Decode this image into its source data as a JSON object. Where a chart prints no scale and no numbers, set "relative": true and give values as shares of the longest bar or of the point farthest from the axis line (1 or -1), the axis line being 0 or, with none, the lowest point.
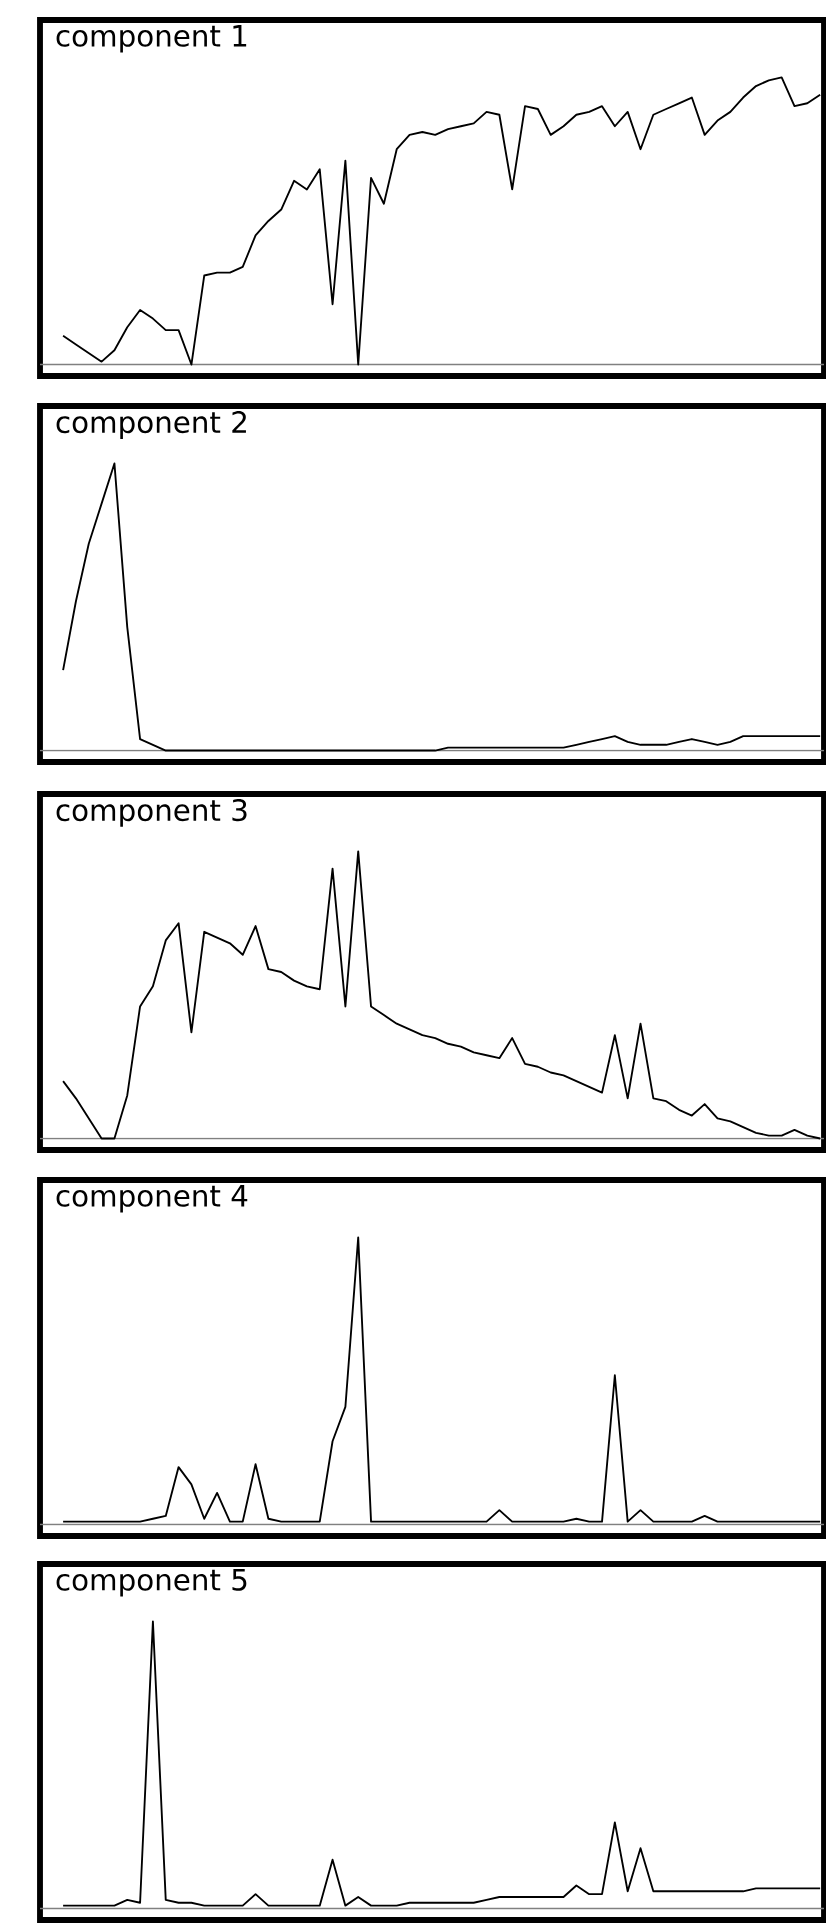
{
  "chart_data": [
    {
      "type": "line",
      "title": "component 1",
      "relative": true,
      "color": "#000000",
      "categories": [
        null,
        null,
        null,
        null,
        null,
        null,
        null,
        null,
        null,
        null,
        null,
        null,
        null,
        null,
        null,
        null,
        null,
        null,
        null,
        null,
        null,
        null,
        null,
        null,
        null,
        null,
        null,
        null,
        null,
        null,
        null,
        null,
        null,
        null,
        null,
        null,
        null,
        null,
        null,
        null,
        null,
        null,
        null,
        null,
        null,
        null,
        null,
        null,
        null,
        null,
        null,
        null,
        null,
        null,
        null,
        null,
        null,
        null,
        null,
        null
      ],
      "values": [
        0.1,
        0.07,
        0.04,
        0.01,
        0.05,
        0.13,
        0.19,
        0.16,
        0.12,
        0.12,
        0,
        0.31,
        0.32,
        0.32,
        0.34,
        0.45,
        0.5,
        0.54,
        0.64,
        0.61,
        0.68,
        0.21,
        0.71,
        0,
        0.65,
        0.56,
        0.75,
        0.8,
        0.81,
        0.8,
        0.82,
        0.83,
        0.84,
        0.88,
        0.87,
        0.61,
        0.9,
        0.89,
        0.8,
        0.83,
        0.87,
        0.88,
        0.9,
        0.83,
        0.88,
        0.75,
        0.87,
        0.89,
        0.91,
        0.93,
        0.8,
        0.85,
        0.88,
        0.93,
        0.97,
        0.99,
        1.0,
        0.9,
        0.91,
        0.94
      ]
    },
    {
      "type": "line",
      "title": "component 2",
      "relative": true,
      "color": "#000000",
      "categories": [
        null,
        null,
        null,
        null,
        null,
        null,
        null,
        null,
        null,
        null,
        null,
        null,
        null,
        null,
        null,
        null,
        null,
        null,
        null,
        null,
        null,
        null,
        null,
        null,
        null,
        null,
        null,
        null,
        null,
        null,
        null,
        null,
        null,
        null,
        null,
        null,
        null,
        null,
        null,
        null,
        null,
        null,
        null,
        null,
        null,
        null,
        null,
        null,
        null,
        null,
        null,
        null,
        null,
        null,
        null,
        null,
        null,
        null,
        null,
        null
      ],
      "values": [
        0.28,
        0.52,
        0.72,
        0.86,
        1.0,
        0.43,
        0.04,
        0.02,
        0,
        0,
        0,
        0,
        0,
        0,
        0,
        0,
        0,
        0,
        0,
        0,
        0,
        0,
        0,
        0,
        0,
        0,
        0,
        0,
        0,
        0,
        0.01,
        0.01,
        0.01,
        0.01,
        0.01,
        0.01,
        0.01,
        0.01,
        0.01,
        0.01,
        0.02,
        0.03,
        0.04,
        0.05,
        0.03,
        0.02,
        0.02,
        0.02,
        0.03,
        0.04,
        0.03,
        0.02,
        0.03,
        0.05,
        0.05,
        0.05,
        0.05,
        0.05,
        0.05,
        0.05
      ]
    },
    {
      "type": "line",
      "title": "component 3",
      "relative": true,
      "color": "#000000",
      "categories": [
        null,
        null,
        null,
        null,
        null,
        null,
        null,
        null,
        null,
        null,
        null,
        null,
        null,
        null,
        null,
        null,
        null,
        null,
        null,
        null,
        null,
        null,
        null,
        null,
        null,
        null,
        null,
        null,
        null,
        null,
        null,
        null,
        null,
        null,
        null,
        null,
        null,
        null,
        null,
        null,
        null,
        null,
        null,
        null,
        null,
        null,
        null,
        null,
        null,
        null,
        null,
        null,
        null,
        null,
        null,
        null,
        null,
        null,
        null,
        null
      ],
      "values": [
        0.2,
        0.14,
        0.07,
        0,
        0,
        0.15,
        0.46,
        0.53,
        0.69,
        0.75,
        0.37,
        0.72,
        0.7,
        0.68,
        0.64,
        0.74,
        0.59,
        0.58,
        0.55,
        0.53,
        0.52,
        0.94,
        0.46,
        1.0,
        0.46,
        0.43,
        0.4,
        0.38,
        0.36,
        0.35,
        0.33,
        0.32,
        0.3,
        0.29,
        0.28,
        0.35,
        0.26,
        0.25,
        0.23,
        0.22,
        0.2,
        0.18,
        0.16,
        0.36,
        0.14,
        0.4,
        0.14,
        0.13,
        0.1,
        0.08,
        0.12,
        0.07,
        0.06,
        0.04,
        0.02,
        0.01,
        0.01,
        0.03,
        0.01,
        0
      ]
    },
    {
      "type": "line",
      "title": "component 4",
      "relative": true,
      "color": "#000000",
      "categories": [
        null,
        null,
        null,
        null,
        null,
        null,
        null,
        null,
        null,
        null,
        null,
        null,
        null,
        null,
        null,
        null,
        null,
        null,
        null,
        null,
        null,
        null,
        null,
        null,
        null,
        null,
        null,
        null,
        null,
        null,
        null,
        null,
        null,
        null,
        null,
        null,
        null,
        null,
        null,
        null,
        null,
        null,
        null,
        null,
        null,
        null,
        null,
        null,
        null,
        null,
        null,
        null,
        null,
        null,
        null,
        null,
        null,
        null,
        null,
        null
      ],
      "values": [
        0.01,
        0.01,
        0.01,
        0.01,
        0.01,
        0.01,
        0.01,
        0.02,
        0.03,
        0.2,
        0.14,
        0.02,
        0.11,
        0.01,
        0.01,
        0.21,
        0.02,
        0.01,
        0.01,
        0.01,
        0.01,
        0.29,
        0.41,
        1.0,
        0.01,
        0.01,
        0.01,
        0.01,
        0.01,
        0.01,
        0.01,
        0.01,
        0.01,
        0.01,
        0.05,
        0.01,
        0.01,
        0.01,
        0.01,
        0.01,
        0.02,
        0.01,
        0.01,
        0.52,
        0.01,
        0.05,
        0.01,
        0.01,
        0.01,
        0.01,
        0.03,
        0.01,
        0.01,
        0.01,
        0.01,
        0.01,
        0.01,
        0.01,
        0.01,
        0.01
      ]
    },
    {
      "type": "line",
      "title": "component 5",
      "relative": true,
      "color": "#000000",
      "categories": [
        null,
        null,
        null,
        null,
        null,
        null,
        null,
        null,
        null,
        null,
        null,
        null,
        null,
        null,
        null,
        null,
        null,
        null,
        null,
        null,
        null,
        null,
        null,
        null,
        null,
        null,
        null,
        null,
        null,
        null,
        null,
        null,
        null,
        null,
        null,
        null,
        null,
        null,
        null,
        null,
        null,
        null,
        null,
        null,
        null,
        null,
        null,
        null,
        null,
        null,
        null,
        null,
        null,
        null,
        null,
        null,
        null,
        null,
        null,
        null
      ],
      "values": [
        0.01,
        0.01,
        0.01,
        0.01,
        0.01,
        0.03,
        0.02,
        1.0,
        0.03,
        0.02,
        0.02,
        0.01,
        0.01,
        0.01,
        0.01,
        0.05,
        0.01,
        0.01,
        0.01,
        0.01,
        0.01,
        0.17,
        0.01,
        0.04,
        0.01,
        0.01,
        0.01,
        0.02,
        0.02,
        0.02,
        0.02,
        0.02,
        0.02,
        0.03,
        0.04,
        0.04,
        0.04,
        0.04,
        0.04,
        0.04,
        0.08,
        0.05,
        0.05,
        0.3,
        0.06,
        0.21,
        0.06,
        0.06,
        0.06,
        0.06,
        0.06,
        0.06,
        0.06,
        0.06,
        0.07,
        0.07,
        0.07,
        0.07,
        0.07,
        0.07
      ]
    }
  ]
}
